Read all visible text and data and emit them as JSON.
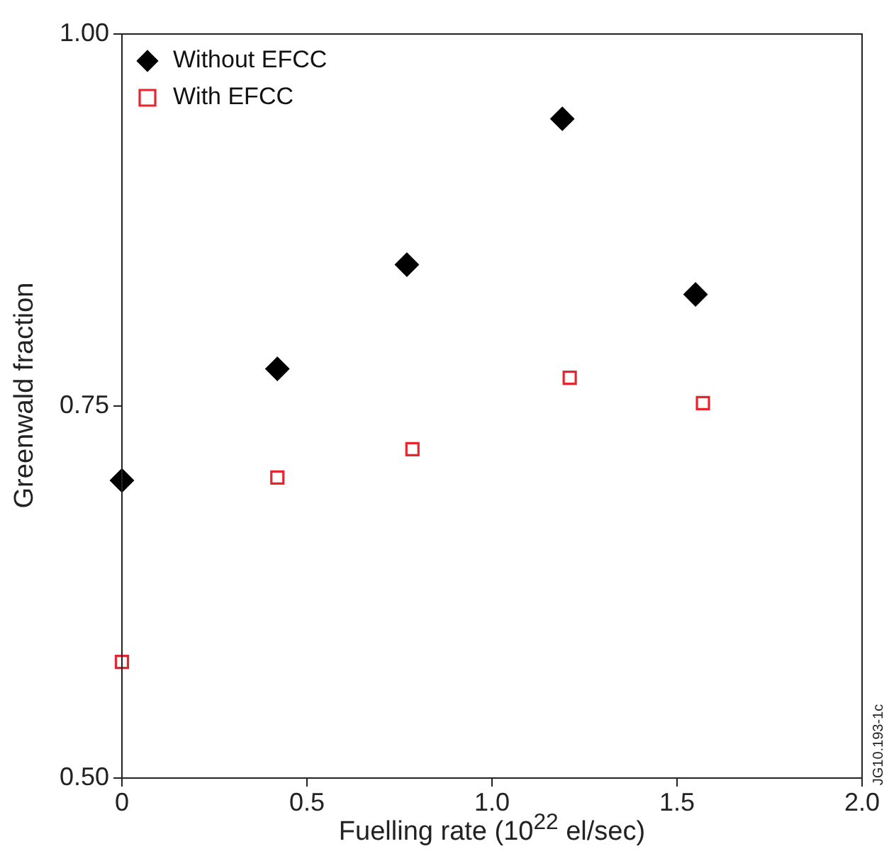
{
  "chart_data": {
    "type": "scatter",
    "xlabel": "Fuelling rate (10$^{22}$ el/sec)",
    "ylabel": "Greenwald fraction",
    "xlim": [
      0,
      2.0
    ],
    "xticks": [
      0,
      0.5,
      {
        "value": 1.0,
        "label": "1.0"
      },
      1.5,
      {
        "value": 2.0,
        "label": "2.0"
      }
    ],
    "ylim": [
      0.5,
      1.0
    ],
    "yticks": [
      {
        "value": 0.5,
        "label": "0.50"
      },
      0.75,
      {
        "value": 1.0,
        "label": "1.00"
      }
    ],
    "grid": false,
    "legend": "top left",
    "annotations": [
      "JG10.193-1c"
    ],
    "series": [
      {
        "name": "Without EFCC",
        "color": "#000000",
        "marker": "diamond",
        "x": [
          0,
          0.42,
          0.77,
          1.19,
          1.55
        ],
        "values": [
          0.7,
          0.775,
          0.845,
          0.943,
          0.825
        ]
      },
      {
        "name": "With EFCC",
        "color": "#e8242c",
        "marker": "square",
        "x": [
          0,
          0.42,
          0.785,
          1.21,
          1.57
        ],
        "values": [
          0.578,
          0.702,
          0.721,
          0.769,
          0.752
        ]
      }
    ]
  }
}
